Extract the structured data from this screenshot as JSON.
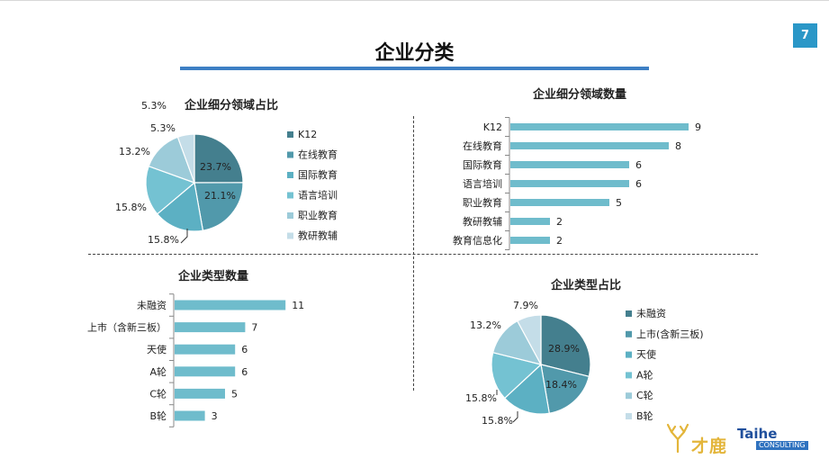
{
  "page": {
    "title": "企业分类",
    "number": "7"
  },
  "brand": {
    "cn_name": "才鹿",
    "en_name": "Taihe",
    "tagline": "CONSULTING"
  },
  "colors": [
    "#447f8e",
    "#5199ab",
    "#5cb0c3",
    "#74c2d2",
    "#9ccbd9",
    "#c4dde8"
  ],
  "chart_data": [
    {
      "type": "pie",
      "title": "企业细分领域占比",
      "categories": [
        "K12",
        "在线教育",
        "国际教育",
        "语言培训",
        "职业教育",
        "教研教辅"
      ],
      "values": [
        23.7,
        21.1,
        15.8,
        15.8,
        13.2,
        5.3
      ],
      "value_labels": [
        "23.7%",
        "21.1%",
        "15.8%",
        "15.8%",
        "13.2%",
        "5.3%"
      ],
      "extra_label": "5.3%",
      "legend": "right"
    },
    {
      "type": "bar",
      "orientation": "horizontal",
      "title": "企业细分领域数量",
      "categories": [
        "K12",
        "在线教育",
        "国际教育",
        "语言培训",
        "职业教育",
        "教研教辅",
        "教育信息化"
      ],
      "values": [
        9,
        8,
        6,
        6,
        5,
        2,
        2
      ]
    },
    {
      "type": "bar",
      "orientation": "horizontal",
      "title": "企业类型数量",
      "categories": [
        "未融资",
        "上市（含新三板）",
        "天使",
        "A轮",
        "C轮",
        "B轮"
      ],
      "values": [
        11,
        7,
        6,
        6,
        5,
        3
      ]
    },
    {
      "type": "pie",
      "title": "企业类型占比",
      "categories": [
        "未融资",
        "上市(含新三板)",
        "天使",
        "A轮",
        "C轮",
        "B轮"
      ],
      "values": [
        28.9,
        18.4,
        15.8,
        15.8,
        13.2,
        7.9
      ],
      "value_labels": [
        "28.9%",
        "18.4%",
        "15.8%",
        "15.8%",
        "13.2%",
        "7.9%"
      ],
      "legend": "right"
    }
  ]
}
